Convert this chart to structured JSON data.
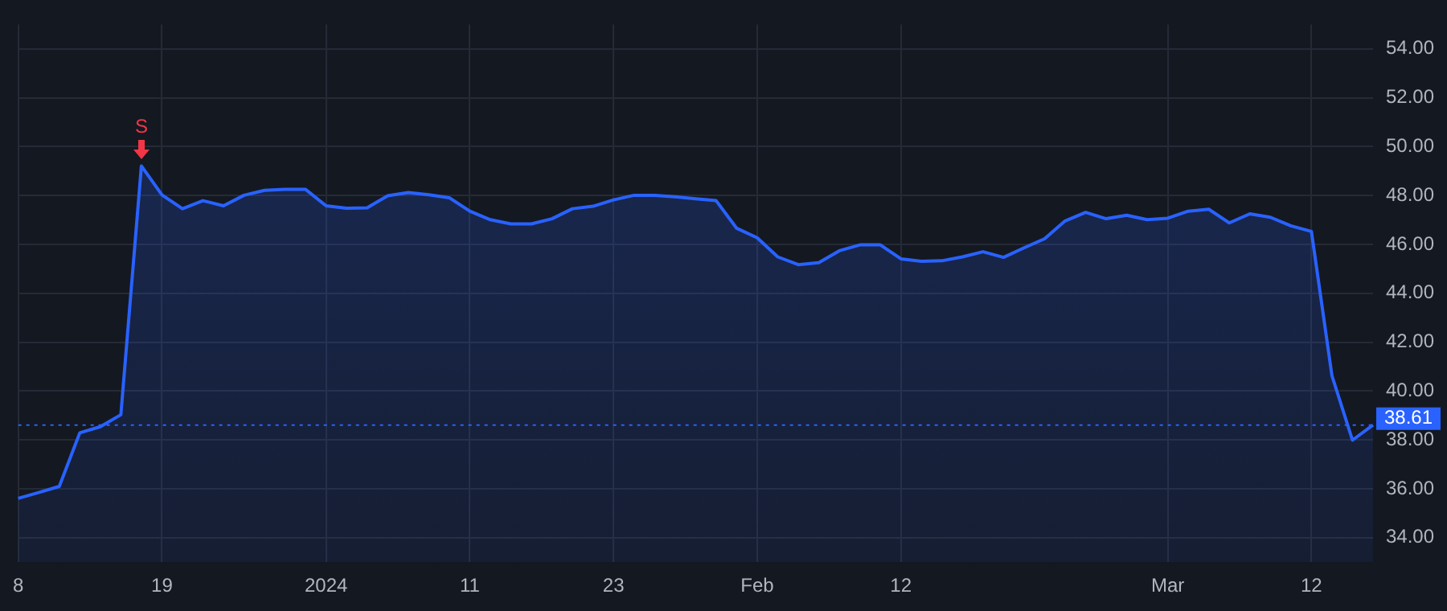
{
  "chart_data": {
    "type": "area",
    "categories": [
      "8",
      null,
      null,
      null,
      null,
      null,
      null,
      "19",
      null,
      null,
      null,
      null,
      null,
      null,
      null,
      "2024",
      null,
      null,
      null,
      null,
      null,
      null,
      "11",
      null,
      null,
      null,
      null,
      null,
      null,
      "23",
      null,
      null,
      null,
      null,
      null,
      null,
      "Feb",
      null,
      null,
      null,
      null,
      null,
      null,
      "12",
      null,
      null,
      null,
      null,
      null,
      null,
      null,
      null,
      null,
      null,
      null,
      null,
      "Mar",
      null,
      null,
      null,
      null,
      null,
      null,
      "12",
      null,
      null,
      null
    ],
    "series": [
      {
        "color": "#2962ff",
        "values": [
          35.61,
          35.85,
          36.1,
          38.29,
          38.54,
          39.03,
          49.21,
          48.03,
          47.46,
          47.79,
          47.58,
          48.01,
          48.21,
          48.25,
          48.25,
          47.58,
          47.48,
          47.5,
          47.99,
          48.12,
          48.03,
          47.91,
          47.36,
          47.01,
          46.84,
          46.84,
          47.05,
          47.46,
          47.56,
          47.82,
          48.01,
          48.01,
          47.95,
          47.87,
          47.79,
          46.66,
          46.27,
          45.49,
          45.17,
          45.25,
          45.74,
          45.98,
          45.98,
          45.41,
          45.31,
          45.33,
          45.49,
          45.7,
          45.47,
          45.86,
          46.23,
          46.96,
          47.31,
          47.05,
          47.19,
          47.01,
          47.07,
          47.36,
          47.44,
          46.88,
          47.25,
          47.11,
          46.76,
          46.53,
          40.63,
          37.99,
          38.61
        ]
      }
    ],
    "ylim": [
      33,
      55
    ],
    "yticks": [
      {
        "value": 34,
        "label": "34.00"
      },
      {
        "value": 36,
        "label": "36.00"
      },
      {
        "value": 38,
        "label": "38.00"
      },
      {
        "value": 40,
        "label": "40.00"
      },
      {
        "value": 42,
        "label": "42.00"
      },
      {
        "value": 44,
        "label": "44.00"
      },
      {
        "value": 46,
        "label": "46.00"
      },
      {
        "value": 48,
        "label": "48.00"
      },
      {
        "value": 50,
        "label": "50.00"
      },
      {
        "value": 52,
        "label": "52.00"
      },
      {
        "value": 54,
        "label": "54.00"
      }
    ],
    "ref_lines": [
      {
        "axis": "y",
        "value": 38.61,
        "label": "38.61",
        "color": "#2962ff",
        "line_style": "dotted"
      }
    ],
    "annotations": [
      {
        "text": "S",
        "y": 49.21
      }
    ],
    "grid": true,
    "legend": false,
    "marker": "none",
    "line_style": "solid"
  }
}
